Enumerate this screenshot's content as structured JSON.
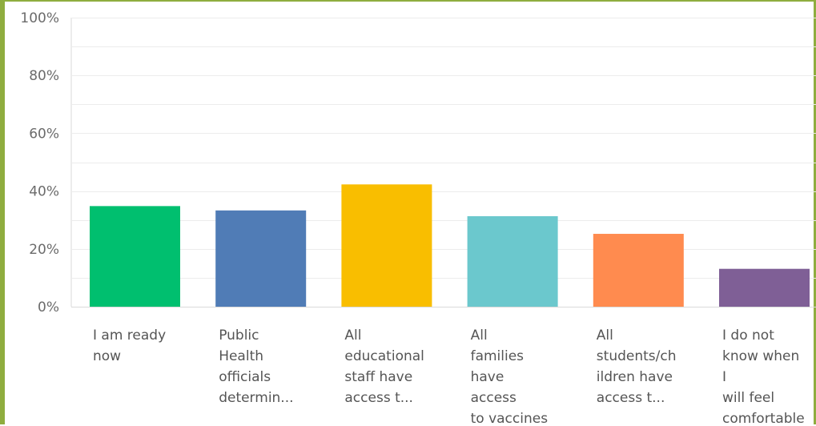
{
  "chart_data": {
    "type": "bar",
    "categories": [
      [
        "I am ready",
        "now"
      ],
      [
        "Public",
        "Health",
        "officials",
        "determin..."
      ],
      [
        "All",
        "educational",
        "staff have",
        "access t..."
      ],
      [
        "All",
        "families",
        "have",
        "access",
        "to vaccines"
      ],
      [
        "All",
        "students/ch",
        "ildren have",
        "access t..."
      ],
      [
        "I do not",
        "know when",
        "I",
        "will feel",
        "comfortable"
      ]
    ],
    "values": [
      34.8,
      33.3,
      42.3,
      31.3,
      25.2,
      13.1
    ],
    "colors": [
      "#00bf6f",
      "#507cb6",
      "#f9be00",
      "#6bc8cd",
      "#ff8b4f",
      "#7f5f96"
    ],
    "yticks": [
      "0%",
      "20%",
      "40%",
      "60%",
      "80%",
      "100%"
    ],
    "ylim": [
      0,
      100
    ],
    "grid": true,
    "title": "",
    "xlabel": "",
    "ylabel": ""
  }
}
